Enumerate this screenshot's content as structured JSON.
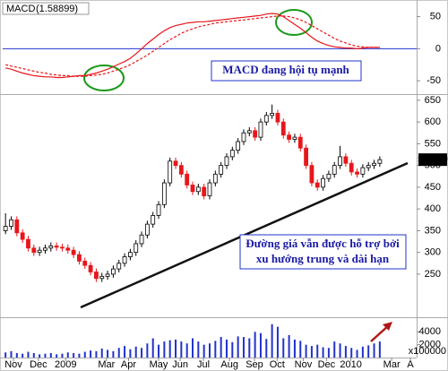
{
  "chart_data": [
    {
      "type": "line",
      "title": "MACD",
      "last_value_label": "(1.58899)",
      "title_value_color": "#e8161b",
      "ylim": [
        -68,
        69
      ],
      "yticks": [
        -50,
        0,
        50
      ],
      "zero_line_color": "#2233cc",
      "series": [
        {
          "name": "MACD",
          "color": "#e8161b",
          "dashed": false,
          "values": [
            -30,
            -32,
            -35,
            -38,
            -40,
            -42,
            -43,
            -44,
            -44,
            -45,
            -45,
            -44,
            -43,
            -42,
            -42,
            -40,
            -38,
            -35,
            -32,
            -28,
            -24,
            -20,
            -15,
            -8,
            0,
            8,
            15,
            22,
            28,
            33,
            36,
            38,
            40,
            41,
            42,
            42,
            43,
            44,
            45,
            46,
            47,
            48,
            49,
            50,
            51,
            52,
            54,
            55,
            54,
            50,
            44,
            38,
            32,
            25,
            18,
            12,
            8,
            5,
            3,
            2,
            1,
            1,
            0,
            1,
            2,
            2,
            2
          ]
        },
        {
          "name": "Signal",
          "color": "#e8161b",
          "dashed": true,
          "values": [
            -25,
            -27,
            -29,
            -31,
            -33,
            -35,
            -37,
            -38,
            -40,
            -41,
            -42,
            -42,
            -43,
            -43,
            -43,
            -42,
            -41,
            -40,
            -38,
            -35,
            -32,
            -29,
            -25,
            -20,
            -15,
            -10,
            -4,
            2,
            8,
            14,
            19,
            24,
            28,
            31,
            34,
            36,
            38,
            40,
            41,
            42,
            43,
            44,
            45,
            46,
            47,
            48,
            49,
            50,
            51,
            51,
            50,
            48,
            45,
            41,
            36,
            31,
            26,
            21,
            16,
            12,
            9,
            6,
            4,
            3,
            2,
            2,
            2
          ]
        }
      ],
      "annotation": "MACD đang hội tụ mạnh"
    },
    {
      "type": "candlestick",
      "ylim": [
        155,
        658
      ],
      "yticks": [
        250,
        300,
        350,
        400,
        450,
        500,
        550,
        600,
        650
      ],
      "up_color": "#ffffff",
      "down_color": "#e8161b",
      "last_label_color": "#00cc00",
      "open": [
        350,
        360,
        375,
        345,
        330,
        310,
        300,
        305,
        310,
        315,
        312,
        310,
        305,
        295,
        280,
        270,
        255,
        240,
        245,
        250,
        262,
        275,
        290,
        300,
        320,
        340,
        365,
        385,
        410,
        460,
        510,
        500,
        480,
        455,
        440,
        450,
        430,
        460,
        480,
        500,
        520,
        535,
        555,
        575,
        580,
        565,
        600,
        615,
        620,
        600,
        570,
        560,
        565,
        540,
        500,
        460,
        450,
        470,
        480,
        500,
        520,
        505,
        485,
        480,
        495,
        500,
        505
      ],
      "high": [
        390,
        383,
        383,
        353,
        338,
        318,
        313,
        318,
        323,
        323,
        320,
        318,
        313,
        303,
        288,
        278,
        263,
        253,
        258,
        270,
        283,
        298,
        308,
        328,
        348,
        373,
        393,
        418,
        468,
        518,
        518,
        508,
        488,
        463,
        458,
        458,
        468,
        488,
        508,
        528,
        543,
        563,
        583,
        588,
        588,
        608,
        623,
        640,
        628,
        608,
        578,
        573,
        573,
        548,
        508,
        468,
        478,
        488,
        508,
        545,
        528,
        513,
        493,
        503,
        508,
        513,
        521
      ],
      "low": [
        342,
        352,
        337,
        322,
        302,
        292,
        292,
        297,
        302,
        304,
        302,
        297,
        287,
        272,
        262,
        247,
        232,
        232,
        237,
        242,
        254,
        267,
        282,
        292,
        312,
        332,
        357,
        377,
        402,
        452,
        492,
        472,
        447,
        432,
        432,
        422,
        422,
        452,
        472,
        492,
        512,
        527,
        547,
        567,
        557,
        557,
        592,
        607,
        592,
        562,
        552,
        552,
        532,
        492,
        452,
        442,
        442,
        462,
        472,
        492,
        497,
        477,
        472,
        472,
        487,
        492,
        497
      ],
      "close": [
        360,
        375,
        345,
        330,
        310,
        300,
        305,
        310,
        315,
        312,
        310,
        305,
        295,
        280,
        270,
        255,
        240,
        245,
        250,
        262,
        275,
        290,
        300,
        320,
        340,
        365,
        385,
        410,
        460,
        510,
        500,
        480,
        455,
        440,
        450,
        430,
        460,
        480,
        500,
        520,
        535,
        555,
        575,
        580,
        565,
        600,
        615,
        620,
        600,
        570,
        560,
        565,
        540,
        500,
        460,
        450,
        470,
        480,
        500,
        520,
        505,
        485,
        480,
        495,
        500,
        505,
        513.39
      ],
      "annotations": [
        "Đường giá vẫn được hỗ trợ bởi",
        "xu hướng trung và dài hạn"
      ]
    },
    {
      "type": "bar",
      "color": "#2233cc",
      "ylim": [
        0,
        6000
      ],
      "yticks": [
        2000,
        4000
      ],
      "y_unit_label": "x100000",
      "values": [
        800,
        1000,
        700,
        600,
        900,
        700,
        500,
        600,
        700,
        500,
        600,
        800,
        700,
        600,
        900,
        1100,
        1000,
        1400,
        1200,
        1000,
        1500,
        1800,
        1300,
        1700,
        1500,
        2200,
        3000,
        2000,
        2500,
        2700,
        2800,
        2500,
        2200,
        3000,
        2500,
        2000,
        2200,
        2600,
        3200,
        2800,
        2400,
        3300,
        3200,
        3000,
        4000,
        3800,
        2900,
        5200,
        4800,
        3000,
        3500,
        2800,
        2600,
        2000,
        1800,
        2000,
        1600,
        1500,
        2500,
        2200,
        1800,
        1500,
        1200,
        1700,
        1900,
        2200,
        2500
      ],
      "xlim": [
        -0.5,
        72.5
      ],
      "xticks": [
        {
          "value": 1.4,
          "label": "Nov"
        },
        {
          "value": 5.8,
          "label": "Dec"
        },
        {
          "value": 10.6,
          "label": "2009"
        },
        {
          "value": 17.8,
          "label": "Mar"
        },
        {
          "value": 21.7,
          "label": "Apr"
        },
        {
          "value": 27,
          "label": "May"
        },
        {
          "value": 30.8,
          "label": "Jun"
        },
        {
          "value": 34.9,
          "label": "Jul"
        },
        {
          "value": 39.5,
          "label": "Aug"
        },
        {
          "value": 43.9,
          "label": "Sep"
        },
        {
          "value": 47.9,
          "label": "Oct"
        },
        {
          "value": 52.5,
          "label": "Nov"
        },
        {
          "value": 56.6,
          "label": "Dec"
        },
        {
          "value": 60.9,
          "label": "2010"
        },
        {
          "value": 68.1,
          "label": "Mar"
        },
        {
          "value": 71.4,
          "label": "A"
        }
      ]
    }
  ]
}
